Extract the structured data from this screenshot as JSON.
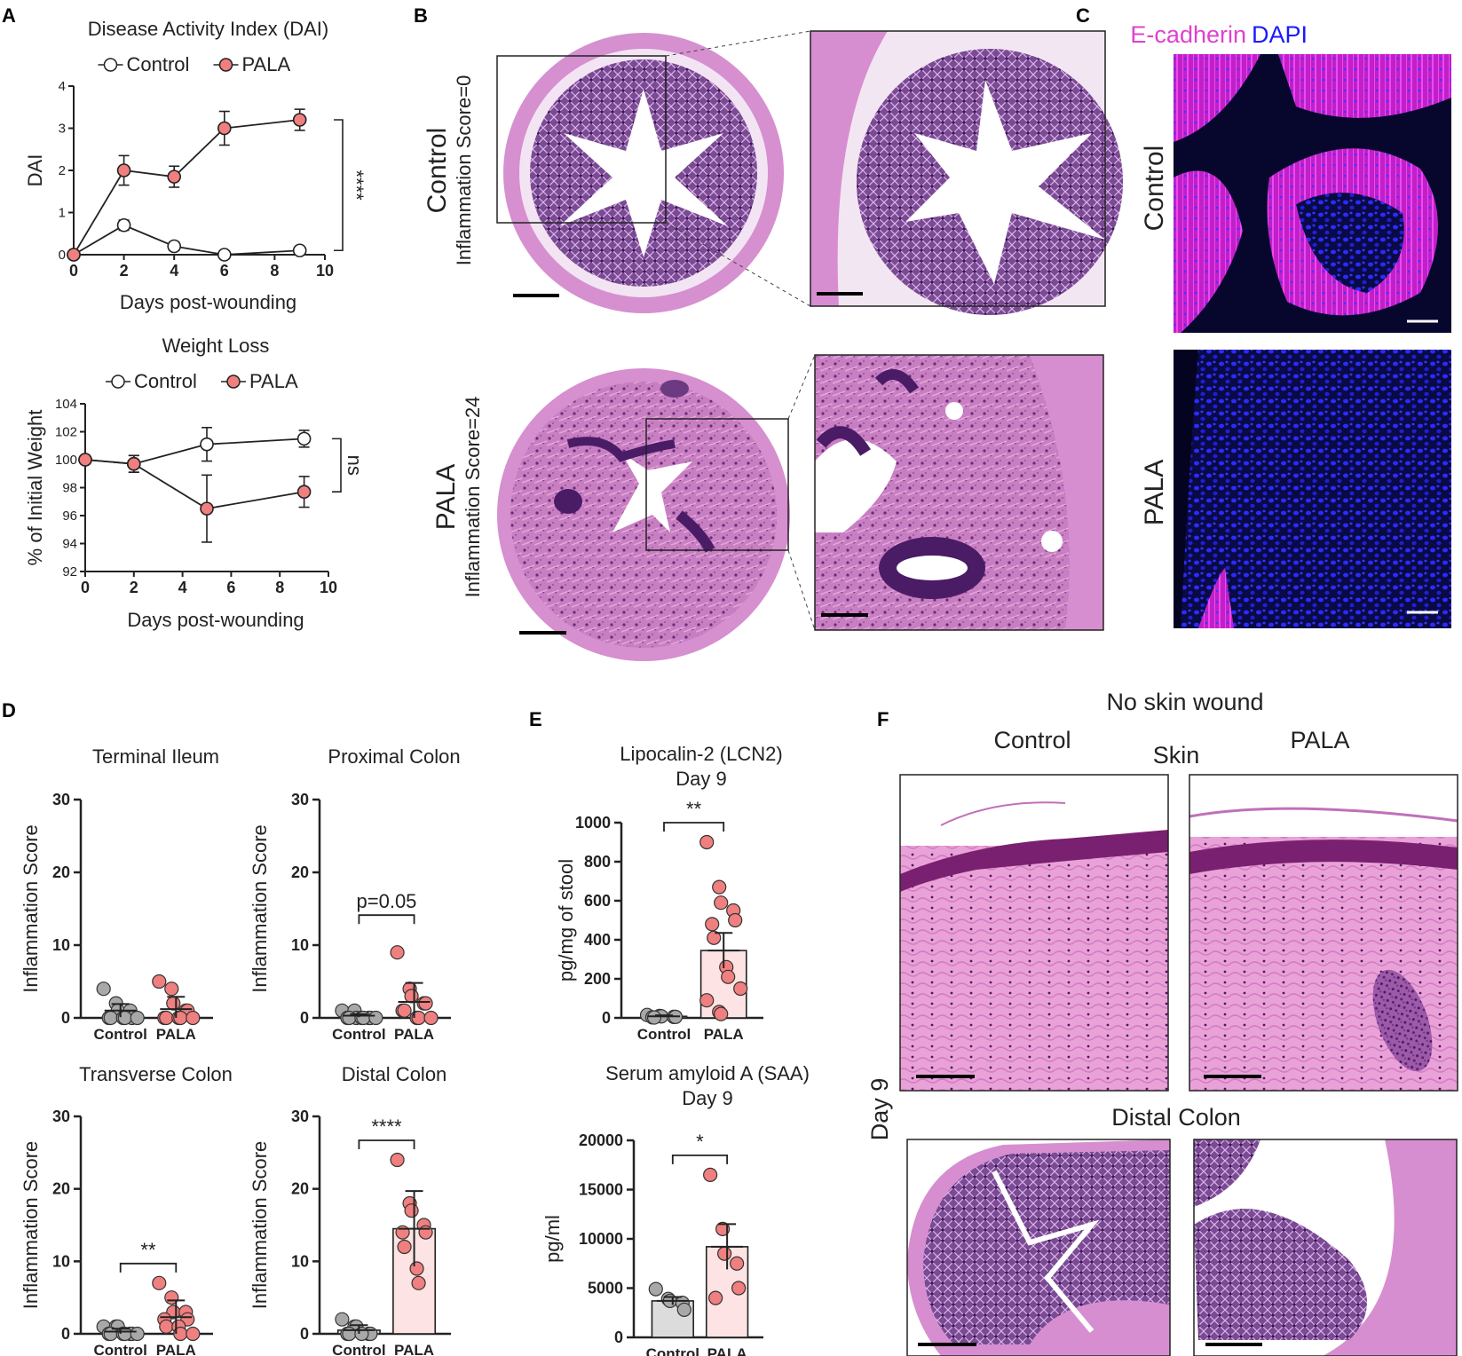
{
  "panel_labels": {
    "a": "A",
    "b": "B",
    "c": "C",
    "d": "D",
    "e": "E",
    "f": "F"
  },
  "colors": {
    "pala": "#f07f7f",
    "control_fill": "#ffffff",
    "control_gray": "#a8a8a8",
    "bar_pala": "#fde3e3",
    "bar_control": "#dcdcdc",
    "magenta": "#e040d0",
    "blue": "#1a1aff"
  },
  "panel_b": {
    "control_label": "Control",
    "control_score": "Inflammation Score=0",
    "pala_label": "PALA",
    "pala_score": "Inflammation Score=24"
  },
  "panel_c": {
    "title_ecad": "E-cadherin",
    "title_dapi": "DAPI",
    "control_label": "Control",
    "pala_label": "PALA"
  },
  "panel_f": {
    "title": "No skin wound",
    "control_label": "Control",
    "pala_label": "PALA",
    "skin_label": "Skin",
    "colon_label": "Distal Colon",
    "day_label": "Day 9"
  },
  "chart_data": [
    {
      "id": "dai",
      "type": "line",
      "title": "Disease Activity Index (DAI)",
      "xlabel": "Days post-wounding",
      "ylabel": "DAI",
      "xlim": [
        0,
        10
      ],
      "ylim": [
        0,
        4
      ],
      "xticks": [
        "0",
        "2",
        "4",
        "6",
        "8",
        "10"
      ],
      "yticks": [
        "0",
        "1",
        "2",
        "3",
        "4"
      ],
      "legend": "top",
      "significance": "****",
      "series": [
        {
          "name": "Control",
          "x": [
            0,
            2,
            4,
            6,
            9
          ],
          "y": [
            0,
            0.7,
            0.2,
            0,
            0.1
          ],
          "err": [
            0,
            0.12,
            0.1,
            0,
            0.05
          ]
        },
        {
          "name": "PALA",
          "x": [
            0,
            2,
            4,
            6,
            9
          ],
          "y": [
            0,
            2.0,
            1.85,
            3.0,
            3.2
          ],
          "err": [
            0,
            0.35,
            0.25,
            0.4,
            0.25
          ]
        }
      ]
    },
    {
      "id": "weight",
      "type": "line",
      "title": "Weight Loss",
      "xlabel": "Days post-wounding",
      "ylabel": "% of Initial Weight",
      "xlim": [
        0,
        10
      ],
      "ylim": [
        92,
        104
      ],
      "xticks": [
        "0",
        "2",
        "4",
        "6",
        "8",
        "10"
      ],
      "yticks": [
        "92",
        "94",
        "96",
        "98",
        "100",
        "102",
        "104"
      ],
      "legend": "top",
      "significance": "ns",
      "series": [
        {
          "name": "Control",
          "x": [
            0,
            2,
            5,
            9
          ],
          "y": [
            100,
            99.7,
            101.1,
            101.5
          ],
          "err": [
            0,
            0.6,
            1.2,
            0.6
          ]
        },
        {
          "name": "PALA",
          "x": [
            0,
            2,
            5,
            9
          ],
          "y": [
            100,
            99.7,
            96.5,
            97.7
          ],
          "err": [
            0,
            0.6,
            2.4,
            1.1
          ]
        }
      ]
    },
    {
      "id": "terminal_ileum",
      "type": "scatter",
      "title": "Terminal Ileum",
      "ylabel": "Inflammation Score",
      "ylim": [
        0,
        30
      ],
      "yticks": [
        "0",
        "10",
        "20",
        "30"
      ],
      "categories": [
        "Control",
        "PALA"
      ],
      "significance": "",
      "series": [
        {
          "name": "Control",
          "mean": 1.0,
          "err": 0.9,
          "points": [
            4,
            2,
            1,
            1,
            0,
            0,
            0,
            0,
            0,
            0
          ]
        },
        {
          "name": "PALA",
          "mean": 1.2,
          "err": 1.7,
          "points": [
            5,
            4,
            2,
            1,
            1,
            0,
            0,
            0,
            0,
            0
          ]
        }
      ]
    },
    {
      "id": "proximal_colon",
      "type": "scatter",
      "title": "Proximal Colon",
      "ylabel": "Inflammation Score",
      "ylim": [
        0,
        30
      ],
      "yticks": [
        "0",
        "10",
        "20",
        "30"
      ],
      "categories": [
        "Control",
        "PALA"
      ],
      "significance": "p=0.05",
      "series": [
        {
          "name": "Control",
          "mean": 0.3,
          "err": 0.2,
          "points": [
            1,
            1,
            0,
            0,
            0,
            0,
            0,
            0,
            0,
            0
          ]
        },
        {
          "name": "PALA",
          "mean": 2.2,
          "err": 2.6,
          "points": [
            9,
            4,
            3,
            2,
            2,
            1,
            1,
            0,
            0,
            0
          ]
        }
      ]
    },
    {
      "id": "transverse_colon",
      "type": "scatter",
      "title": "Transverse Colon",
      "ylabel": "Inflammation Score",
      "ylim": [
        0,
        30
      ],
      "yticks": [
        "0",
        "10",
        "20",
        "30"
      ],
      "categories": [
        "Control",
        "PALA"
      ],
      "significance": "**",
      "series": [
        {
          "name": "Control",
          "mean": 0.3,
          "err": 0.4,
          "points": [
            1,
            1,
            1,
            0,
            0,
            0,
            0,
            0,
            0,
            0
          ]
        },
        {
          "name": "PALA",
          "mean": 2.3,
          "err": 2.3,
          "points": [
            7,
            5,
            3,
            3,
            2,
            2,
            1,
            1,
            0,
            0
          ]
        }
      ]
    },
    {
      "id": "distal_colon",
      "type": "bar",
      "title": "Distal Colon",
      "ylabel": "Inflammation Score",
      "ylim": [
        0,
        30
      ],
      "yticks": [
        "0",
        "10",
        "20",
        "30"
      ],
      "categories": [
        "Control",
        "PALA"
      ],
      "significance": "****",
      "series": [
        {
          "name": "Control",
          "mean": 0.5,
          "err": 0.7,
          "points": [
            2,
            1,
            1,
            0,
            0,
            0,
            0,
            0
          ]
        },
        {
          "name": "PALA",
          "mean": 14.5,
          "err": 5.2,
          "points": [
            24,
            18,
            17,
            15,
            14,
            14,
            12,
            9,
            7
          ]
        }
      ]
    },
    {
      "id": "lcn2",
      "type": "bar",
      "title": "Lipocalin-2 (LCN2)",
      "subtitle": "Day 9",
      "ylabel": "pg/mg of stool",
      "ylim": [
        0,
        1000
      ],
      "yticks": [
        "0",
        "200",
        "400",
        "600",
        "800",
        "1000"
      ],
      "categories": [
        "Control",
        "PALA"
      ],
      "significance": "**",
      "series": [
        {
          "name": "Control",
          "mean": 8,
          "err": 5,
          "points": [
            15,
            10,
            8,
            5,
            5,
            3,
            2
          ]
        },
        {
          "name": "PALA",
          "mean": 345,
          "err": 90,
          "points": [
            900,
            670,
            590,
            550,
            500,
            480,
            410,
            260,
            210,
            150,
            90,
            30,
            20
          ]
        }
      ]
    },
    {
      "id": "saa",
      "type": "bar",
      "title": "Serum amyloid A (SAA)",
      "subtitle": "Day 9",
      "ylabel": "pg/ml",
      "ylim": [
        0,
        20000
      ],
      "yticks": [
        "0",
        "5000",
        "10000",
        "15000",
        "20000"
      ],
      "categories": [
        "Control",
        "PALA"
      ],
      "significance": "*",
      "series": [
        {
          "name": "Control",
          "mean": 3700,
          "err": 400,
          "points": [
            4900,
            3900,
            3700,
            3500,
            2800
          ]
        },
        {
          "name": "PALA",
          "mean": 9200,
          "err": 2300,
          "points": [
            16500,
            11000,
            8500,
            7500,
            5000,
            4000
          ]
        }
      ]
    }
  ]
}
